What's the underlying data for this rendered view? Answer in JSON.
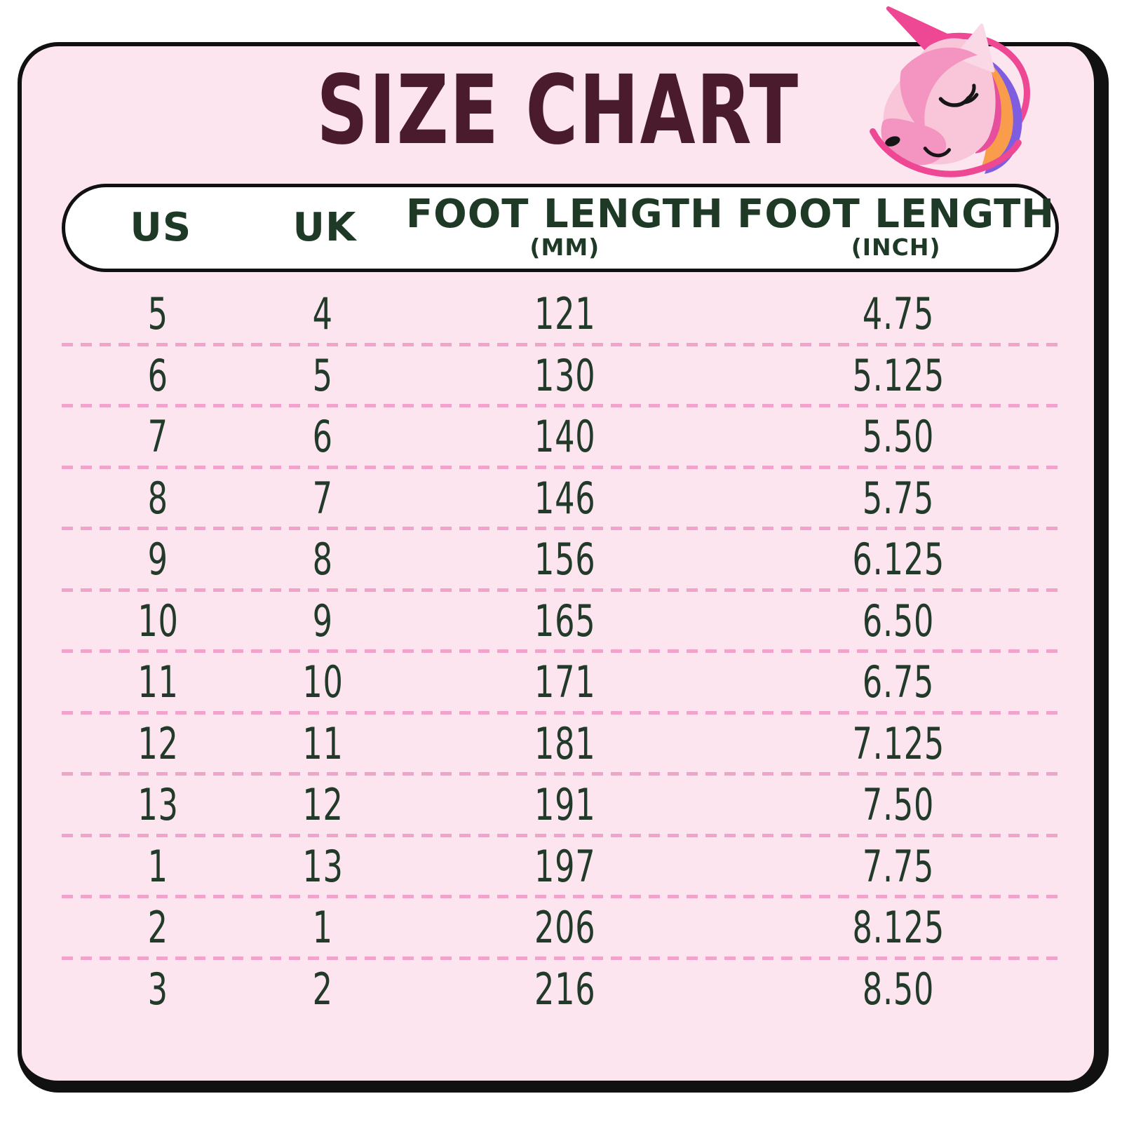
{
  "title": "SIZE CHART",
  "logo": {
    "icon": "unicorn-with-planet-ring-icon"
  },
  "table": {
    "headers": [
      {
        "label": "US",
        "sub": ""
      },
      {
        "label": "UK",
        "sub": ""
      },
      {
        "label": "FOOT LENGTH",
        "sub": "(MM)"
      },
      {
        "label": "FOOT LENGTH",
        "sub": "(INCH)"
      }
    ],
    "rows": [
      [
        "5",
        "4",
        "121",
        "4.75"
      ],
      [
        "6",
        "5",
        "130",
        "5.125"
      ],
      [
        "7",
        "6",
        "140",
        "5.50"
      ],
      [
        "8",
        "7",
        "146",
        "5.75"
      ],
      [
        "9",
        "8",
        "156",
        "6.125"
      ],
      [
        "10",
        "9",
        "165",
        "6.50"
      ],
      [
        "11",
        "10",
        "171",
        "6.75"
      ],
      [
        "12",
        "11",
        "181",
        "7.125"
      ],
      [
        "13",
        "12",
        "191",
        "7.50"
      ],
      [
        "1",
        "13",
        "197",
        "7.75"
      ],
      [
        "2",
        "1",
        "206",
        "8.125"
      ],
      [
        "3",
        "2",
        "216",
        "8.50"
      ]
    ]
  },
  "chart_data": {
    "type": "table",
    "title": "SIZE CHART",
    "columns": [
      "US",
      "UK",
      "FOOT LENGTH (MM)",
      "FOOT LENGTH (INCH)"
    ],
    "rows": [
      [
        5,
        4,
        121,
        4.75
      ],
      [
        6,
        5,
        130,
        5.125
      ],
      [
        7,
        6,
        140,
        5.5
      ],
      [
        8,
        7,
        146,
        5.75
      ],
      [
        9,
        8,
        156,
        6.125
      ],
      [
        10,
        9,
        165,
        6.5
      ],
      [
        11,
        10,
        171,
        6.75
      ],
      [
        12,
        11,
        181,
        7.125
      ],
      [
        13,
        12,
        191,
        7.5
      ],
      [
        1,
        13,
        197,
        7.75
      ],
      [
        2,
        1,
        206,
        8.125
      ],
      [
        3,
        2,
        216,
        8.5
      ]
    ]
  },
  "colors": {
    "card_background": "#fce5ef",
    "card_border": "#111111",
    "title_text": "#4a1b2d",
    "header_text": "#1e3a27",
    "data_text": "#223a29",
    "row_divider": "#f2a3cb",
    "unicorn_face": "#f9c6d9",
    "unicorn_ear": "#fbd8e6",
    "unicorn_forelock": "#f494c0",
    "unicorn_horn_ring": "#ee4793",
    "mane_magenta": "#e64f9d",
    "mane_orange": "#f99d4d",
    "mane_purple": "#7e5de0"
  }
}
